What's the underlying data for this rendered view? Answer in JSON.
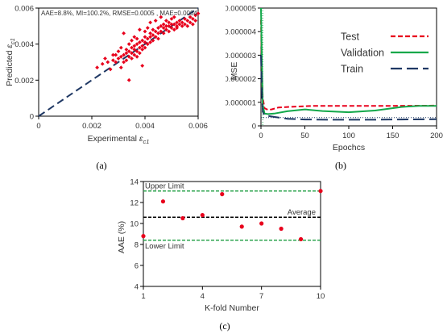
{
  "panels": {
    "a": {
      "label": "(a)"
    },
    "b": {
      "label": "(b)"
    },
    "c": {
      "label": "(c)"
    }
  },
  "colors": {
    "red": "#e8001c",
    "navy": "#1f3864",
    "green": "#12a84a",
    "green_dash": "#2ea44f",
    "black": "#000000"
  },
  "chart_data": [
    {
      "id": "a",
      "type": "scatter",
      "annotation": "AAE=8.8%, MI=100.2%, RMSE=0.0005 , MAE=0.0004",
      "xlabel": "Experimental ",
      "xlabel_sym": "ε",
      "xlabel_sub": "c1",
      "ylabel": "Predicted ",
      "ylabel_sym": "ε",
      "ylabel_sub": "c1",
      "xlim": [
        0,
        0.006
      ],
      "ylim": [
        0,
        0.006
      ],
      "xticks": [
        0,
        0.002,
        0.004,
        0.006
      ],
      "yticks": [
        0,
        0.002,
        0.004,
        0.006
      ],
      "xtick_labels": [
        "0",
        "0.002",
        "0.004",
        "0.006"
      ],
      "ytick_labels": [
        "0",
        "0.002",
        "0.004",
        "0.006"
      ],
      "grid": false,
      "reference_line": {
        "style": "dashed",
        "color": "#1f3864",
        "from": [
          0,
          0
        ],
        "to": [
          0.006,
          0.006
        ]
      },
      "points": [
        [
          0.0022,
          0.0027
        ],
        [
          0.0024,
          0.0029
        ],
        [
          0.0025,
          0.0032
        ],
        [
          0.0026,
          0.003
        ],
        [
          0.0027,
          0.0026
        ],
        [
          0.0028,
          0.0031
        ],
        [
          0.0028,
          0.0034
        ],
        [
          0.0029,
          0.003
        ],
        [
          0.0029,
          0.0034
        ],
        [
          0.003,
          0.0032
        ],
        [
          0.003,
          0.0036
        ],
        [
          0.0031,
          0.0027
        ],
        [
          0.0031,
          0.0033
        ],
        [
          0.0031,
          0.0038
        ],
        [
          0.0032,
          0.003
        ],
        [
          0.0032,
          0.0034
        ],
        [
          0.0032,
          0.0046
        ],
        [
          0.0033,
          0.0031
        ],
        [
          0.0033,
          0.0035
        ],
        [
          0.0033,
          0.0037
        ],
        [
          0.0034,
          0.002
        ],
        [
          0.0034,
          0.0033
        ],
        [
          0.0034,
          0.0036
        ],
        [
          0.0034,
          0.004
        ],
        [
          0.0035,
          0.0032
        ],
        [
          0.0035,
          0.0035
        ],
        [
          0.0035,
          0.0038
        ],
        [
          0.0035,
          0.0042
        ],
        [
          0.0036,
          0.0034
        ],
        [
          0.0036,
          0.0037
        ],
        [
          0.0036,
          0.0039
        ],
        [
          0.0036,
          0.0044
        ],
        [
          0.0037,
          0.0033
        ],
        [
          0.0037,
          0.0036
        ],
        [
          0.0037,
          0.004
        ],
        [
          0.0037,
          0.0043
        ],
        [
          0.0038,
          0.0035
        ],
        [
          0.0038,
          0.0038
        ],
        [
          0.0038,
          0.0041
        ],
        [
          0.0038,
          0.0048
        ],
        [
          0.0039,
          0.0037
        ],
        [
          0.0039,
          0.0039
        ],
        [
          0.0039,
          0.0042
        ],
        [
          0.0039,
          0.0028
        ],
        [
          0.004,
          0.0038
        ],
        [
          0.004,
          0.0041
        ],
        [
          0.004,
          0.0044
        ],
        [
          0.004,
          0.0047
        ],
        [
          0.0041,
          0.004
        ],
        [
          0.0041,
          0.0043
        ],
        [
          0.0041,
          0.0049
        ],
        [
          0.0042,
          0.0041
        ],
        [
          0.0042,
          0.0044
        ],
        [
          0.0042,
          0.0046
        ],
        [
          0.0042,
          0.0052
        ],
        [
          0.0043,
          0.0042
        ],
        [
          0.0043,
          0.0045
        ],
        [
          0.0043,
          0.0048
        ],
        [
          0.0044,
          0.0044
        ],
        [
          0.0044,
          0.0047
        ],
        [
          0.0044,
          0.0053
        ],
        [
          0.0045,
          0.0043
        ],
        [
          0.0045,
          0.0046
        ],
        [
          0.0045,
          0.0049
        ],
        [
          0.0046,
          0.0047
        ],
        [
          0.0046,
          0.005
        ],
        [
          0.0046,
          0.0055
        ],
        [
          0.0047,
          0.0046
        ],
        [
          0.0047,
          0.0049
        ],
        [
          0.0047,
          0.0051
        ],
        [
          0.0048,
          0.0048
        ],
        [
          0.0048,
          0.005
        ],
        [
          0.0048,
          0.0053
        ],
        [
          0.0049,
          0.0047
        ],
        [
          0.0049,
          0.005
        ],
        [
          0.0049,
          0.0052
        ],
        [
          0.005,
          0.0049
        ],
        [
          0.005,
          0.0051
        ],
        [
          0.005,
          0.0054
        ],
        [
          0.0051,
          0.0048
        ],
        [
          0.0051,
          0.0051
        ],
        [
          0.0051,
          0.0055
        ],
        [
          0.0052,
          0.005
        ],
        [
          0.0052,
          0.0052
        ],
        [
          0.0052,
          0.0049
        ],
        [
          0.0053,
          0.0051
        ],
        [
          0.0053,
          0.0053
        ],
        [
          0.0054,
          0.005
        ],
        [
          0.0054,
          0.0052
        ],
        [
          0.0055,
          0.0051
        ],
        [
          0.0055,
          0.0054
        ],
        [
          0.0056,
          0.005
        ],
        [
          0.0056,
          0.0053
        ],
        [
          0.0057,
          0.0052
        ],
        [
          0.0057,
          0.0055
        ],
        [
          0.0058,
          0.0051
        ],
        [
          0.0058,
          0.0054
        ],
        [
          0.0059,
          0.0053
        ],
        [
          0.0059,
          0.0056
        ],
        [
          0.006,
          0.0057
        ]
      ]
    },
    {
      "id": "b",
      "type": "line",
      "xlabel": "Epochcs",
      "ylabel": "MSE",
      "xlim": [
        0,
        200
      ],
      "ylim": [
        0,
        5e-06
      ],
      "xticks": [
        0,
        50,
        100,
        150,
        200
      ],
      "yticks": [
        0,
        1e-06,
        2e-06,
        3e-06,
        4e-06,
        5e-06
      ],
      "xtick_labels": [
        "0",
        "50",
        "100",
        "150",
        "200"
      ],
      "ytick_labels": [
        "0",
        "0.000001",
        "0.000002",
        "0.000003",
        "0.000004",
        "0.000005"
      ],
      "legend_position": "top-right",
      "series": [
        {
          "name": "Test",
          "color": "#e8001c",
          "style": "dashed",
          "x": [
            0,
            1,
            2,
            4,
            8,
            12,
            20,
            40,
            60,
            100,
            150,
            200
          ],
          "y": [
            4.5e-06,
            2.5e-06,
            1.2e-06,
            7.5e-07,
            6.8e-07,
            7e-07,
            7.8e-07,
            8.2e-07,
            8.5e-07,
            8.5e-07,
            8.5e-07,
            8.6e-07
          ]
        },
        {
          "name": "Validation",
          "color": "#12a84a",
          "style": "solid",
          "x": [
            0,
            1,
            2,
            4,
            8,
            15,
            30,
            50,
            70,
            100,
            130,
            160,
            180,
            200
          ],
          "y": [
            5e-06,
            2.8e-06,
            9e-07,
            5.2e-07,
            5e-07,
            5.2e-07,
            6.2e-07,
            7e-07,
            6.3e-07,
            5.8e-07,
            6.5e-07,
            8e-07,
            8.5e-07,
            8.5e-07
          ]
        },
        {
          "name": "Train",
          "color": "#1f3864",
          "style": "long-dash",
          "x": [
            0,
            1,
            2,
            4,
            8,
            15,
            30,
            50,
            80,
            120,
            160,
            200
          ],
          "y": [
            3e-06,
            1.5e-06,
            6e-07,
            4.5e-07,
            4.2e-07,
            3.8e-07,
            3e-07,
            2.7e-07,
            2.6e-07,
            2.6e-07,
            2.7e-07,
            2.8e-07
          ]
        }
      ],
      "guides": [
        {
          "style": "dotted",
          "color": "#12a84a",
          "x": 2
        },
        {
          "style": "dotted",
          "color": "#1f3864",
          "y": 3.5e-07
        }
      ]
    },
    {
      "id": "c",
      "type": "scatter",
      "xlabel": "K-fold Number",
      "ylabel": "AAE",
      "ylabel_unit": "(%)",
      "xlim": [
        1,
        10
      ],
      "ylim": [
        4,
        14
      ],
      "xticks": [
        1,
        4,
        7,
        10
      ],
      "yticks": [
        4,
        6,
        8,
        10,
        12,
        14
      ],
      "xtick_labels": [
        "1",
        "4",
        "7",
        "10"
      ],
      "ytick_labels": [
        "4",
        "6",
        "8",
        "10",
        "12",
        "14"
      ],
      "points": [
        [
          1,
          8.8
        ],
        [
          2,
          12.1
        ],
        [
          3,
          10.5
        ],
        [
          4,
          10.8
        ],
        [
          5,
          12.8
        ],
        [
          6,
          9.7
        ],
        [
          7,
          10.0
        ],
        [
          8,
          9.5
        ],
        [
          9,
          8.5
        ],
        [
          10,
          13.1
        ]
      ],
      "reference_lines": [
        {
          "label": "Upper Limit",
          "y": 13.1,
          "color": "#2ea44f",
          "style": "dashed",
          "label_side": "left"
        },
        {
          "label": "Average",
          "y": 10.6,
          "color": "#000000",
          "style": "dashed",
          "label_side": "right"
        },
        {
          "label": "Lower Limit",
          "y": 8.4,
          "color": "#2ea44f",
          "style": "dashed",
          "label_side": "left"
        }
      ]
    }
  ]
}
